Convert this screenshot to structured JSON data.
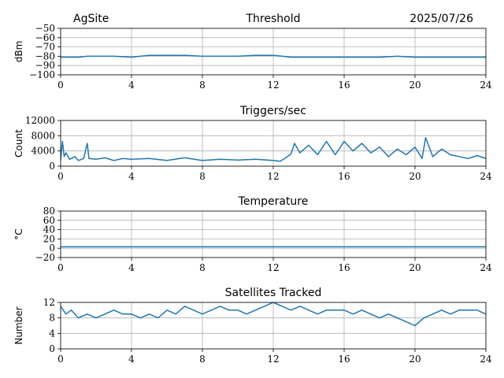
{
  "header": {
    "site": "AgSite",
    "date": "2025/07/26"
  },
  "colors": {
    "series": "#1f77b4",
    "grid": "#b0b0b0",
    "axis": "#000000"
  },
  "chart_data": [
    {
      "type": "line",
      "title": "Threshold",
      "xlabel": "",
      "ylabel": "dBm",
      "xlim": [
        0,
        24
      ],
      "ylim": [
        -100,
        -50
      ],
      "xticks": [
        0,
        4,
        8,
        12,
        16,
        20,
        24
      ],
      "yticks": [
        -100,
        -90,
        -80,
        -70,
        -60,
        -50
      ],
      "ytick_labels": [
        "−100",
        "−90",
        "−80",
        "−70",
        "−60",
        "−50"
      ],
      "grid": true,
      "series": [
        {
          "x": [
            0,
            1,
            1.5,
            2,
            3,
            4,
            4.5,
            5,
            6,
            7,
            8,
            9,
            10,
            11,
            12,
            12.5,
            13,
            14,
            15,
            16,
            17,
            18,
            19,
            20,
            21,
            22,
            23,
            24
          ],
          "values": [
            -81,
            -81,
            -80,
            -80,
            -80,
            -81,
            -80,
            -79,
            -79,
            -79,
            -80,
            -80,
            -80,
            -79,
            -79,
            -80,
            -81,
            -81,
            -81,
            -81,
            -81,
            -81,
            -80,
            -81,
            -81,
            -81,
            -81,
            -81
          ]
        }
      ]
    },
    {
      "type": "line",
      "title": "Triggers/sec",
      "xlabel": "",
      "ylabel": "Count",
      "xlim": [
        0,
        24
      ],
      "ylim": [
        0,
        12000
      ],
      "xticks": [
        0,
        4,
        8,
        12,
        16,
        20,
        24
      ],
      "yticks": [
        0,
        4000,
        8000,
        12000
      ],
      "ytick_labels": [
        "0",
        "4000",
        "8000",
        "12000"
      ],
      "grid": true,
      "series": [
        {
          "x": [
            0,
            0.1,
            0.2,
            0.3,
            0.5,
            0.8,
            1,
            1.3,
            1.5,
            1.6,
            2,
            2.5,
            3,
            3.5,
            4,
            5,
            6,
            7,
            8,
            9,
            10,
            11,
            12,
            12.4,
            12.8,
            13,
            13.2,
            13.5,
            14,
            14.5,
            15,
            15.5,
            16,
            16.5,
            17,
            17.5,
            18,
            18.5,
            19,
            19.5,
            20,
            20.4,
            20.6,
            21,
            21.5,
            22,
            22.5,
            23,
            23.5,
            24
          ],
          "values": [
            1500,
            6500,
            2500,
            3500,
            1800,
            2500,
            1500,
            2000,
            6000,
            2000,
            1800,
            2200,
            1500,
            2000,
            1800,
            2000,
            1500,
            2200,
            1500,
            1800,
            1600,
            1800,
            1500,
            1300,
            2500,
            3200,
            6000,
            3500,
            5500,
            3000,
            6500,
            3000,
            6500,
            4000,
            6000,
            3500,
            5000,
            2500,
            4500,
            3000,
            5000,
            2000,
            7500,
            2500,
            4500,
            3000,
            2500,
            2000,
            2800,
            2000
          ]
        }
      ]
    },
    {
      "type": "line",
      "title": "Temperature",
      "xlabel": "",
      "ylabel": "°C",
      "xlim": [
        0,
        24
      ],
      "ylim": [
        -20,
        80
      ],
      "xticks": [
        0,
        4,
        8,
        12,
        16,
        20,
        24
      ],
      "yticks": [
        -20,
        0,
        20,
        40,
        60,
        80
      ],
      "ytick_labels": [
        "−20",
        "0",
        "20",
        "40",
        "60",
        "80"
      ],
      "grid": true,
      "series": [
        {
          "x": [
            0,
            24
          ],
          "values": [
            3,
            3
          ]
        }
      ]
    },
    {
      "type": "line",
      "title": "Satellites Tracked",
      "xlabel": "",
      "ylabel": "Number",
      "xlim": [
        0,
        24
      ],
      "ylim": [
        0,
        12
      ],
      "xticks": [
        0,
        4,
        8,
        12,
        16,
        20,
        24
      ],
      "yticks": [
        0,
        4,
        8,
        12
      ],
      "ytick_labels": [
        "0",
        "4",
        "8",
        "12"
      ],
      "grid": true,
      "series": [
        {
          "x": [
            0,
            0.3,
            0.6,
            1,
            1.5,
            2,
            2.5,
            3,
            3.5,
            4,
            4.5,
            5,
            5.5,
            6,
            6.5,
            7,
            7.5,
            8,
            8.5,
            9,
            9.5,
            10,
            10.5,
            11,
            11.5,
            12,
            12.5,
            13,
            13.5,
            14,
            14.5,
            15,
            15.5,
            16,
            16.5,
            17,
            17.5,
            18,
            18.5,
            19,
            19.5,
            20,
            20.5,
            21,
            21.5,
            22,
            22.5,
            23,
            23.5,
            24
          ],
          "values": [
            11,
            9,
            10,
            8,
            9,
            8,
            9,
            10,
            9,
            9,
            8,
            9,
            8,
            10,
            9,
            11,
            10,
            9,
            10,
            11,
            10,
            10,
            9,
            10,
            11,
            12,
            11,
            10,
            11,
            10,
            9,
            10,
            10,
            10,
            9,
            10,
            9,
            8,
            9,
            8,
            7,
            6,
            8,
            9,
            10,
            9,
            10,
            10,
            10,
            9
          ]
        }
      ]
    }
  ]
}
